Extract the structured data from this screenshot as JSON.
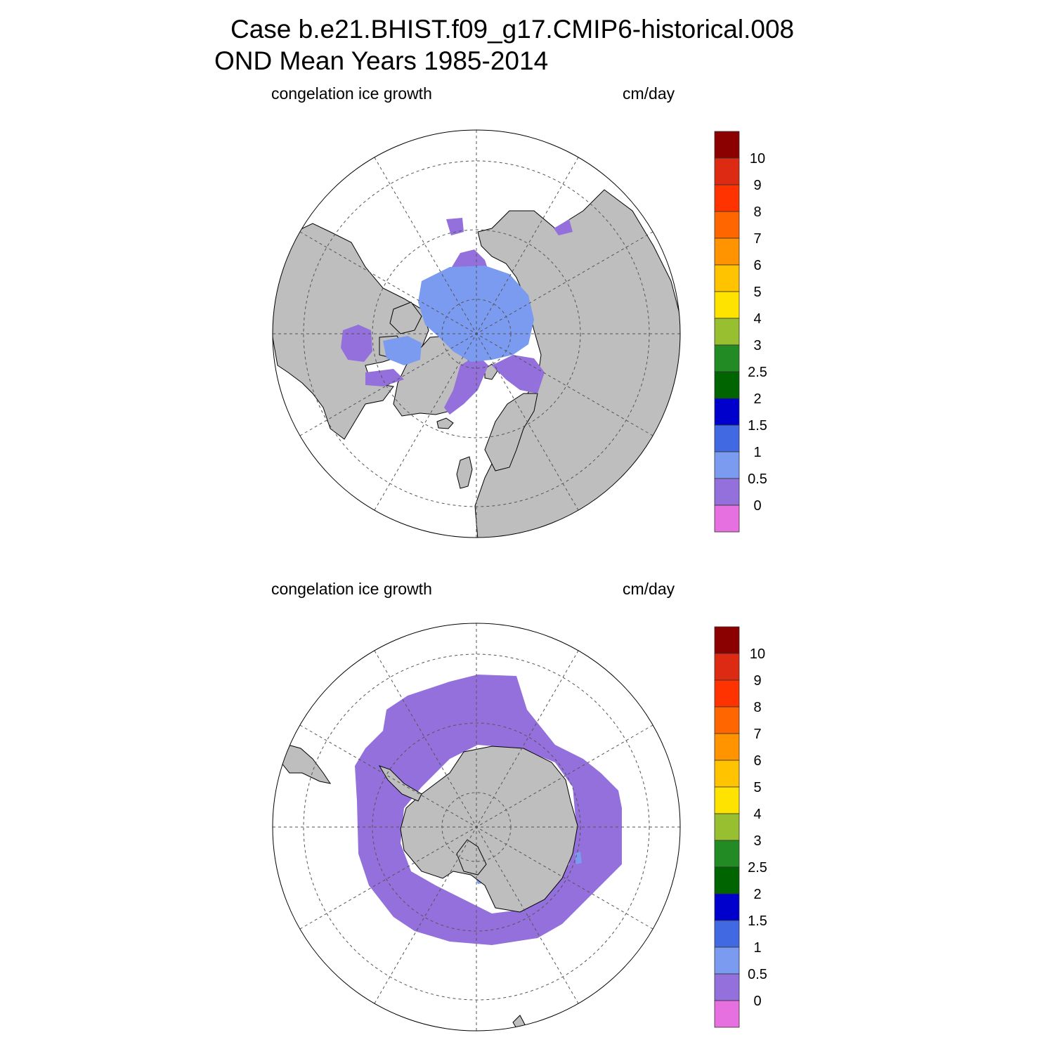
{
  "title": {
    "line1": "Case b.e21.BHIST.f09_g17.CMIP6-historical.008",
    "line2": "OND Mean   Years 1985-2014"
  },
  "colors": {
    "land": "#bebebe",
    "graticule": "#555555",
    "ocean": "#ffffff"
  },
  "colorbar": {
    "labels": [
      "10",
      "9",
      "8",
      "7",
      "6",
      "5",
      "4",
      "3",
      "2.5",
      "2",
      "1.5",
      "1",
      "0.5",
      "0"
    ],
    "colors": [
      "#8b0000",
      "#dd2a12",
      "#ff3300",
      "#ff6600",
      "#ff9400",
      "#ffc300",
      "#ffe300",
      "#98bf30",
      "#238b23",
      "#006400",
      "#0000cd",
      "#4169e1",
      "#7b9bf0",
      "#9370db",
      "#e770e0"
    ]
  },
  "panels": [
    {
      "id": "north",
      "variable": "congelation ice growth",
      "units": "cm/day",
      "hemisphere": "north"
    },
    {
      "id": "south",
      "variable": "congelation ice growth",
      "units": "cm/day",
      "hemisphere": "south"
    }
  ]
}
